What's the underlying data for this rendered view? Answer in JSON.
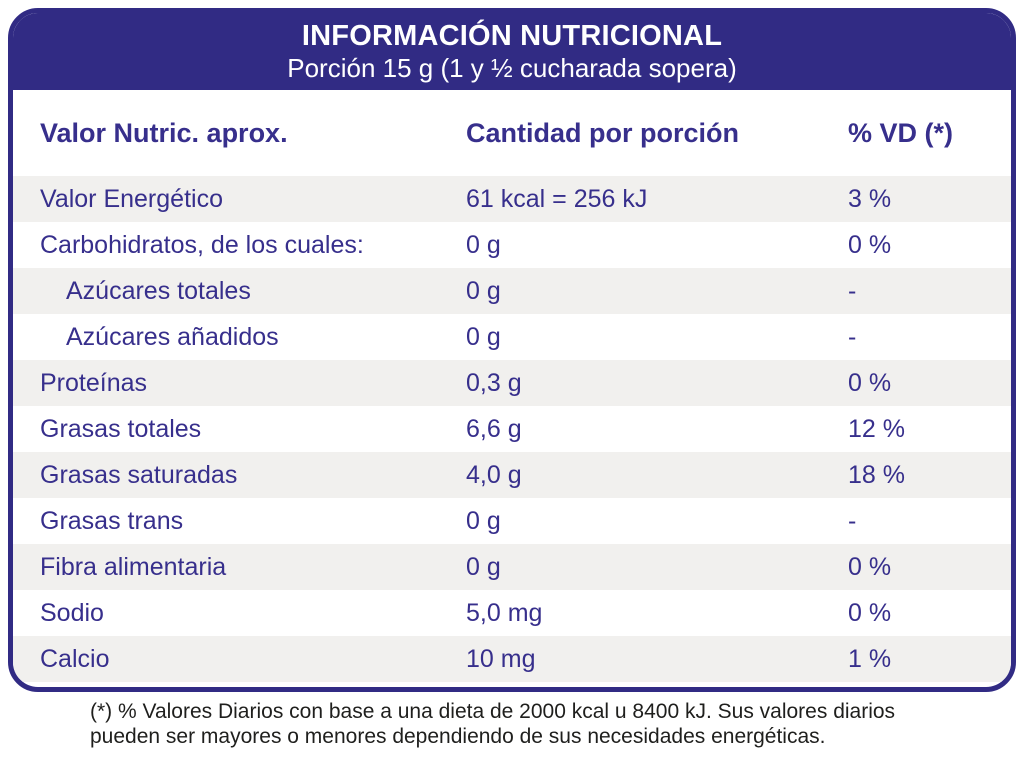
{
  "header": {
    "title": "INFORMACIÓN NUTRICIONAL",
    "subtitle": "Porción 15 g (1 y ½ cucharada sopera)"
  },
  "table": {
    "columns": [
      "Valor Nutric. aprox.",
      "Cantidad por porción",
      "% VD (*)"
    ],
    "rows": [
      {
        "label": "Valor Energético",
        "amount": "61 kcal = 256 kJ",
        "vd": "3 %",
        "indent": false
      },
      {
        "label": "Carbohidratos, de los cuales:",
        "amount": "0 g",
        "vd": "0 %",
        "indent": false
      },
      {
        "label": "Azúcares totales",
        "amount": "0 g",
        "vd": "-",
        "indent": true
      },
      {
        "label": "Azúcares añadidos",
        "amount": "0 g",
        "vd": "-",
        "indent": true
      },
      {
        "label": "Proteínas",
        "amount": "0,3 g",
        "vd": "0 %",
        "indent": false
      },
      {
        "label": "Grasas totales",
        "amount": "6,6 g",
        "vd": "12 %",
        "indent": false
      },
      {
        "label": "Grasas saturadas",
        "amount": "4,0 g",
        "vd": "18 %",
        "indent": false
      },
      {
        "label": "Grasas trans",
        "amount": "0 g",
        "vd": "-",
        "indent": false
      },
      {
        "label": "Fibra alimentaria",
        "amount": "0 g",
        "vd": "0 %",
        "indent": false
      },
      {
        "label": "Sodio",
        "amount": "5,0 mg",
        "vd": "0 %",
        "indent": false
      },
      {
        "label": "Calcio",
        "amount": "10 mg",
        "vd": "1 %",
        "indent": false
      }
    ]
  },
  "footnote": {
    "line1": "(*) % Valores Diarios con base a una dieta de 2000 kcal u 8400 kJ. Sus valores diarios",
    "line2": "pueden ser mayores o menores dependiendo de sus necesidades energéticas."
  },
  "colors": {
    "navy": "#312b84",
    "row_text": "#372f8c",
    "stripe": "#f1f0ee",
    "footnote_text": "#1f1f1d"
  }
}
